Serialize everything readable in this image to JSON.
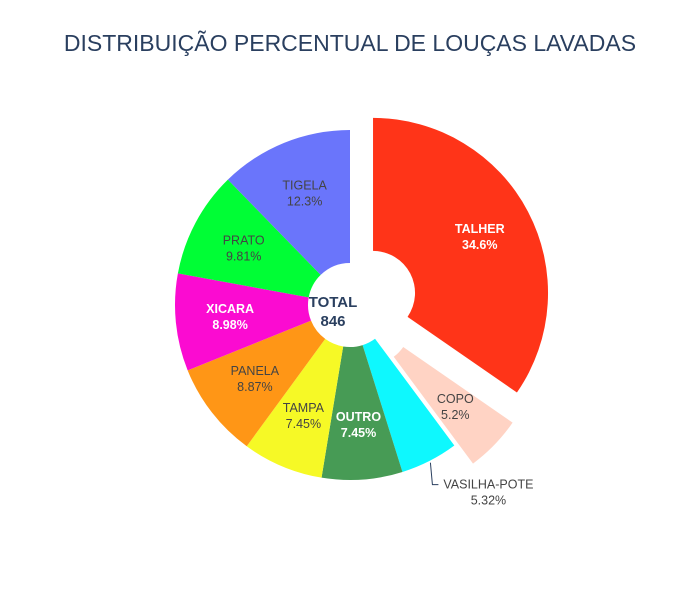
{
  "chart_data": {
    "type": "pie",
    "title": "DISTRIBUIÇÃO PERCENTUAL DE LOUÇAS LAVADAS",
    "center_label": "TOTAL",
    "center_value": "846",
    "hole": true,
    "slices": [
      {
        "label": "TALHER",
        "percent": "34.6%",
        "value": 293,
        "color": "#FF3418",
        "pulled": true,
        "text_color": "#ffffff",
        "bold": true
      },
      {
        "label": "COPO",
        "percent": "5.2%",
        "value": 44,
        "color": "#FFD3C4",
        "pulled": true,
        "text_color": "#444444",
        "bold": false
      },
      {
        "label": "VASILHA-POTE",
        "percent": "5.32%",
        "value": 45,
        "color": "#0EF8FE",
        "pulled": false,
        "text_color": "#444444",
        "bold": false,
        "outside": true
      },
      {
        "label": "OUTRO",
        "percent": "7.45%",
        "value": 63,
        "color": "#479B55",
        "pulled": false,
        "text_color": "#ffffff",
        "bold": true
      },
      {
        "label": "TAMPA",
        "percent": "7.45%",
        "value": 63,
        "color": "#F6F926",
        "pulled": false,
        "text_color": "#444444",
        "bold": false
      },
      {
        "label": "PANELA",
        "percent": "8.87%",
        "value": 75,
        "color": "#FF9616",
        "pulled": false,
        "text_color": "#444444",
        "bold": false
      },
      {
        "label": "XICARA",
        "percent": "8.98%",
        "value": 76,
        "color": "#FB0BD1",
        "pulled": false,
        "text_color": "#ffffff",
        "bold": true
      },
      {
        "label": "PRATO",
        "percent": "9.81%",
        "value": 83,
        "color": "#00FE35",
        "pulled": false,
        "text_color": "#444444",
        "bold": false
      },
      {
        "label": "TIGELA",
        "percent": "12.3%",
        "value": 104,
        "color": "#6A75FB",
        "pulled": false,
        "text_color": "#444444",
        "bold": false
      }
    ]
  }
}
